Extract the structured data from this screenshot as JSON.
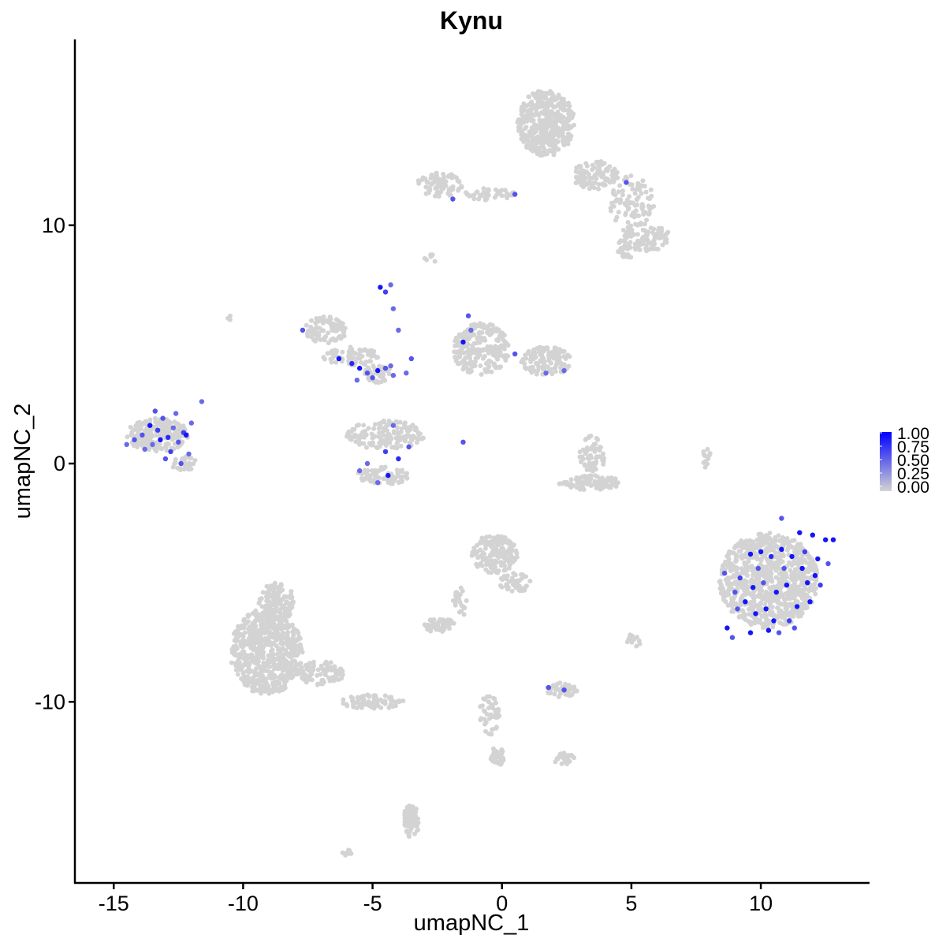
{
  "chart_data": {
    "type": "scatter",
    "title": "Kynu",
    "xlabel": "umapNC_1",
    "ylabel": "umapNC_2",
    "xlim": [
      -16.5,
      14.2
    ],
    "ylim": [
      -17.6,
      17.8
    ],
    "x_ticks": [
      -15,
      -10,
      -5,
      0,
      5,
      10
    ],
    "x_tick_labels": [
      "-15",
      "-10",
      "-5",
      "0",
      "5",
      "10"
    ],
    "y_ticks": [
      -10,
      0,
      10
    ],
    "y_tick_labels": [
      "-10",
      "0",
      "10"
    ],
    "grid": false,
    "legend_position": "right",
    "color_scale": {
      "low_color": "#d3d3d3",
      "high_color": "#0000ff",
      "range": [
        0,
        1
      ],
      "breaks": [
        "1.00",
        "0.75",
        "0.50",
        "0.25",
        "0.00"
      ]
    },
    "background_point_color": "#d3d3d3",
    "series": [
      {
        "name": "expressing cells",
        "points": [
          [
            -13.9,
            1.2,
            0.6
          ],
          [
            -13.6,
            1.6,
            0.9
          ],
          [
            -13.5,
            0.8,
            0.5
          ],
          [
            -13.3,
            1.4,
            0.7
          ],
          [
            -13.1,
            1.9,
            0.6
          ],
          [
            -12.9,
            1.1,
            0.8
          ],
          [
            -12.7,
            1.5,
            0.5
          ],
          [
            -12.5,
            0.9,
            0.6
          ],
          [
            -12.3,
            1.3,
            0.7
          ],
          [
            -12.6,
            2.1,
            0.5
          ],
          [
            -13.8,
            0.6,
            0.5
          ],
          [
            -14.2,
            1.0,
            0.6
          ],
          [
            -12.1,
            0.4,
            0.5
          ],
          [
            -12.4,
            0.0,
            0.6
          ],
          [
            -12.0,
            1.7,
            0.5
          ],
          [
            -13.0,
            0.2,
            0.6
          ],
          [
            -14.5,
            0.8,
            0.5
          ],
          [
            -13.4,
            2.2,
            0.6
          ],
          [
            -12.8,
            0.5,
            0.7
          ],
          [
            -11.6,
            2.6,
            0.5
          ],
          [
            -13.2,
            1.0,
            0.9
          ],
          [
            -12.2,
            1.2,
            0.9
          ],
          [
            -7.7,
            5.6,
            0.6
          ],
          [
            -6.3,
            4.4,
            0.9
          ],
          [
            -5.8,
            4.2,
            0.8
          ],
          [
            -5.5,
            4.0,
            0.9
          ],
          [
            -5.2,
            3.8,
            0.6
          ],
          [
            -4.8,
            3.9,
            0.9
          ],
          [
            -4.5,
            4.0,
            0.6
          ],
          [
            -4.2,
            3.7,
            0.5
          ],
          [
            -5.0,
            3.6,
            0.6
          ],
          [
            -4.3,
            4.1,
            0.5
          ],
          [
            -4.7,
            7.4,
            0.9
          ],
          [
            -4.5,
            7.2,
            0.7
          ],
          [
            -4.3,
            7.5,
            0.5
          ],
          [
            -4.2,
            6.5,
            0.5
          ],
          [
            -4.0,
            5.6,
            0.5
          ],
          [
            -3.5,
            4.4,
            0.6
          ],
          [
            -3.7,
            3.8,
            0.5
          ],
          [
            -5.6,
            3.5,
            0.5
          ],
          [
            -4.5,
            0.5,
            0.7
          ],
          [
            -4.0,
            0.2,
            0.8
          ],
          [
            -3.6,
            0.7,
            0.6
          ],
          [
            -5.2,
            0.0,
            0.5
          ],
          [
            -4.4,
            -0.5,
            0.9
          ],
          [
            -4.8,
            -0.8,
            0.5
          ],
          [
            -4.2,
            1.6,
            0.5
          ],
          [
            -5.5,
            -0.3,
            0.5
          ],
          [
            -1.5,
            5.1,
            0.9
          ],
          [
            -1.3,
            6.2,
            0.6
          ],
          [
            -1.2,
            5.6,
            0.5
          ],
          [
            0.5,
            4.6,
            0.6
          ],
          [
            1.7,
            3.8,
            0.5
          ],
          [
            2.4,
            3.9,
            0.5
          ],
          [
            -1.5,
            0.9,
            0.6
          ],
          [
            -1.9,
            11.1,
            0.6
          ],
          [
            0.5,
            11.3,
            0.6
          ],
          [
            4.8,
            11.8,
            0.6
          ],
          [
            1.8,
            -9.4,
            0.6
          ],
          [
            2.4,
            -9.5,
            0.6
          ],
          [
            8.6,
            -4.6,
            0.6
          ],
          [
            9.2,
            -4.8,
            0.7
          ],
          [
            9.6,
            -3.8,
            0.9
          ],
          [
            10.0,
            -3.7,
            0.9
          ],
          [
            10.4,
            -3.9,
            0.8
          ],
          [
            10.8,
            -3.6,
            0.9
          ],
          [
            11.2,
            -3.9,
            0.9
          ],
          [
            11.6,
            -4.4,
            0.9
          ],
          [
            12.1,
            -4.7,
            0.9
          ],
          [
            12.5,
            -3.2,
            0.9
          ],
          [
            9.4,
            -5.8,
            0.9
          ],
          [
            9.8,
            -6.3,
            0.9
          ],
          [
            10.2,
            -6.1,
            0.9
          ],
          [
            10.6,
            -5.4,
            0.9
          ],
          [
            11.0,
            -5.1,
            0.9
          ],
          [
            11.4,
            -6.0,
            0.9
          ],
          [
            11.9,
            -5.8,
            0.9
          ],
          [
            12.3,
            -5.1,
            0.7
          ],
          [
            8.7,
            -6.9,
            0.9
          ],
          [
            9.6,
            -7.1,
            0.9
          ],
          [
            10.3,
            -7.0,
            0.9
          ],
          [
            11.1,
            -6.6,
            0.7
          ],
          [
            9.1,
            -6.1,
            0.6
          ],
          [
            10.9,
            -4.4,
            0.6
          ],
          [
            11.5,
            -2.9,
            0.9
          ],
          [
            12.8,
            -3.2,
            0.9
          ],
          [
            12.2,
            -4.0,
            0.9
          ],
          [
            11.7,
            -3.7,
            0.7
          ],
          [
            10.1,
            -5.0,
            0.6
          ],
          [
            9.0,
            -5.4,
            0.6
          ],
          [
            8.9,
            -7.3,
            0.6
          ],
          [
            10.7,
            -7.1,
            0.6
          ],
          [
            11.3,
            -6.9,
            0.6
          ],
          [
            9.9,
            -4.4,
            0.6
          ],
          [
            10.5,
            -6.6,
            0.9
          ],
          [
            11.8,
            -5.0,
            0.9
          ],
          [
            12.6,
            -4.2,
            0.6
          ],
          [
            9.7,
            -5.2,
            0.9
          ],
          [
            10.8,
            -2.3,
            0.6
          ],
          [
            12.0,
            -3.0,
            0.9
          ]
        ]
      }
    ],
    "clusters": [
      {
        "x": 1.7,
        "y": 14.3,
        "rx": 1.1,
        "ry": 1.4,
        "n": 420
      },
      {
        "x": 3.6,
        "y": 12.1,
        "rx": 0.9,
        "ry": 0.6,
        "n": 110
      },
      {
        "x": 5.0,
        "y": 11.0,
        "rx": 0.9,
        "ry": 1.1,
        "n": 90
      },
      {
        "x": 5.5,
        "y": 9.5,
        "rx": 1.0,
        "ry": 0.6,
        "n": 100
      },
      {
        "x": 4.8,
        "y": 9.0,
        "rx": 0.4,
        "ry": 0.4,
        "n": 25
      },
      {
        "x": -2.4,
        "y": 11.7,
        "rx": 0.9,
        "ry": 0.5,
        "n": 90
      },
      {
        "x": -0.5,
        "y": 11.3,
        "rx": 1.0,
        "ry": 0.25,
        "n": 45
      },
      {
        "x": -2.7,
        "y": 8.6,
        "rx": 0.3,
        "ry": 0.2,
        "n": 6
      },
      {
        "x": -6.8,
        "y": 5.6,
        "rx": 0.8,
        "ry": 0.6,
        "n": 90
      },
      {
        "x": -5.8,
        "y": 4.5,
        "rx": 1.1,
        "ry": 0.4,
        "n": 70
      },
      {
        "x": -4.8,
        "y": 3.8,
        "rx": 0.5,
        "ry": 0.4,
        "n": 40
      },
      {
        "x": -4.5,
        "y": 1.2,
        "rx": 1.5,
        "ry": 0.6,
        "n": 140
      },
      {
        "x": -4.6,
        "y": -0.5,
        "rx": 1.0,
        "ry": 0.4,
        "n": 80
      },
      {
        "x": -0.8,
        "y": 4.8,
        "rx": 1.1,
        "ry": 1.1,
        "n": 220
      },
      {
        "x": 1.7,
        "y": 4.3,
        "rx": 1.0,
        "ry": 0.6,
        "n": 120
      },
      {
        "x": 3.5,
        "y": 0.4,
        "rx": 0.5,
        "ry": 0.8,
        "n": 60
      },
      {
        "x": 3.4,
        "y": -0.8,
        "rx": 1.2,
        "ry": 0.3,
        "n": 90
      },
      {
        "x": -13.3,
        "y": 1.2,
        "rx": 1.2,
        "ry": 0.7,
        "n": 220
      },
      {
        "x": -12.3,
        "y": 0.0,
        "rx": 0.5,
        "ry": 0.3,
        "n": 30
      },
      {
        "x": 10.3,
        "y": -4.9,
        "rx": 1.9,
        "ry": 2.0,
        "n": 850
      },
      {
        "x": -0.3,
        "y": -3.8,
        "rx": 0.9,
        "ry": 0.8,
        "n": 160
      },
      {
        "x": 0.5,
        "y": -5.0,
        "rx": 0.6,
        "ry": 0.4,
        "n": 40
      },
      {
        "x": -2.4,
        "y": -6.8,
        "rx": 0.6,
        "ry": 0.3,
        "n": 50
      },
      {
        "x": -1.6,
        "y": -5.8,
        "rx": 0.3,
        "ry": 0.6,
        "n": 20
      },
      {
        "x": -9.1,
        "y": -7.9,
        "rx": 1.4,
        "ry": 1.8,
        "n": 650
      },
      {
        "x": -8.7,
        "y": -5.8,
        "rx": 0.7,
        "ry": 0.8,
        "n": 120
      },
      {
        "x": -7.0,
        "y": -8.8,
        "rx": 0.9,
        "ry": 0.5,
        "n": 90
      },
      {
        "x": -5.0,
        "y": -10.0,
        "rx": 1.2,
        "ry": 0.3,
        "n": 80
      },
      {
        "x": 2.3,
        "y": -9.5,
        "rx": 0.6,
        "ry": 0.3,
        "n": 45
      },
      {
        "x": 2.4,
        "y": -12.4,
        "rx": 0.4,
        "ry": 0.25,
        "n": 25
      },
      {
        "x": -0.2,
        "y": -12.3,
        "rx": 0.3,
        "ry": 0.4,
        "n": 40
      },
      {
        "x": -0.5,
        "y": -10.6,
        "rx": 0.4,
        "ry": 0.9,
        "n": 45
      },
      {
        "x": -3.5,
        "y": -15.0,
        "rx": 0.3,
        "ry": 0.7,
        "n": 70
      },
      {
        "x": -6.0,
        "y": -16.3,
        "rx": 0.2,
        "ry": 0.15,
        "n": 8
      },
      {
        "x": 5.1,
        "y": -7.4,
        "rx": 0.3,
        "ry": 0.3,
        "n": 15
      },
      {
        "x": 7.9,
        "y": 0.3,
        "rx": 0.15,
        "ry": 0.5,
        "n": 12
      },
      {
        "x": -10.5,
        "y": 6.1,
        "rx": 0.1,
        "ry": 0.1,
        "n": 3
      }
    ]
  }
}
